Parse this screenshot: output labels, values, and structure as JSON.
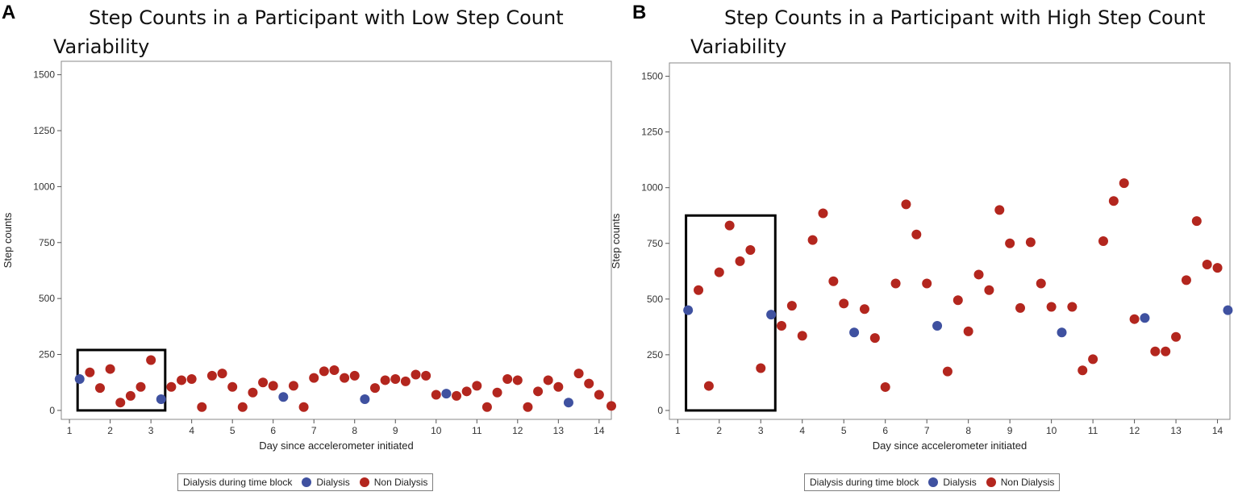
{
  "chart_data": [
    {
      "panel_label": "A",
      "type": "scatter",
      "title_line1": "Step Counts in a Participant with Low Step Count",
      "title_line2": "Variability",
      "xlabel": "Day since accelerometer initiated",
      "ylabel": "Step counts",
      "xlim": [
        0.8,
        14.3
      ],
      "ylim": [
        -40,
        1560
      ],
      "xticks": [
        "1",
        "2",
        "3",
        "4",
        "5",
        "6",
        "7",
        "8",
        "9",
        "10",
        "11",
        "12",
        "13",
        "14"
      ],
      "yticks": [
        "0",
        "250",
        "500",
        "750",
        "1000",
        "1250",
        "1500"
      ],
      "legend_title": "Dialysis during time block",
      "series": [
        {
          "name": "Dialysis",
          "color": "#3f51a0",
          "points": [
            [
              1.25,
              140
            ],
            [
              3.25,
              50
            ],
            [
              6.25,
              60
            ],
            [
              8.25,
              50
            ],
            [
              10.25,
              75
            ],
            [
              13.25,
              35
            ]
          ]
        },
        {
          "name": "Non Dialysis",
          "color": "#b3261e",
          "points": [
            [
              1.5,
              170
            ],
            [
              1.75,
              100
            ],
            [
              2.0,
              185
            ],
            [
              2.25,
              35
            ],
            [
              2.5,
              65
            ],
            [
              2.75,
              105
            ],
            [
              3.0,
              225
            ],
            [
              3.5,
              105
            ],
            [
              3.75,
              135
            ],
            [
              4.0,
              140
            ],
            [
              4.25,
              15
            ],
            [
              4.5,
              155
            ],
            [
              4.75,
              165
            ],
            [
              5.0,
              105
            ],
            [
              5.25,
              15
            ],
            [
              5.5,
              80
            ],
            [
              5.75,
              125
            ],
            [
              6.0,
              110
            ],
            [
              6.5,
              110
            ],
            [
              6.75,
              15
            ],
            [
              7.0,
              145
            ],
            [
              7.25,
              175
            ],
            [
              7.5,
              180
            ],
            [
              7.75,
              145
            ],
            [
              8.0,
              155
            ],
            [
              8.5,
              100
            ],
            [
              8.75,
              135
            ],
            [
              9.0,
              140
            ],
            [
              9.25,
              130
            ],
            [
              9.5,
              160
            ],
            [
              9.75,
              155
            ],
            [
              10.0,
              70
            ],
            [
              10.5,
              65
            ],
            [
              10.75,
              85
            ],
            [
              11.0,
              110
            ],
            [
              11.25,
              15
            ],
            [
              11.5,
              80
            ],
            [
              11.75,
              140
            ],
            [
              12.0,
              135
            ],
            [
              12.25,
              15
            ],
            [
              12.5,
              85
            ],
            [
              12.75,
              135
            ],
            [
              13.0,
              105
            ],
            [
              13.5,
              165
            ],
            [
              13.75,
              120
            ],
            [
              14.0,
              70
            ],
            [
              14.3,
              20
            ]
          ]
        }
      ],
      "highlight_box": {
        "x_range": [
          1.2,
          3.35
        ],
        "y_range": [
          0,
          270
        ]
      }
    },
    {
      "panel_label": "B",
      "type": "scatter",
      "title_line1": "Step Counts in a Participant with High Step Count",
      "title_line2": "Variability",
      "xlabel": "Day since accelerometer initiated",
      "ylabel": "Step counts",
      "xlim": [
        0.8,
        14.3
      ],
      "ylim": [
        -40,
        1560
      ],
      "xticks": [
        "1",
        "2",
        "3",
        "4",
        "5",
        "6",
        "7",
        "8",
        "9",
        "10",
        "11",
        "12",
        "13",
        "14"
      ],
      "yticks": [
        "0",
        "250",
        "500",
        "750",
        "1000",
        "1250",
        "1500"
      ],
      "legend_title": "Dialysis during time block",
      "series": [
        {
          "name": "Dialysis",
          "color": "#3f51a0",
          "points": [
            [
              1.25,
              450
            ],
            [
              3.25,
              430
            ],
            [
              5.25,
              350
            ],
            [
              7.25,
              380
            ],
            [
              10.25,
              350
            ],
            [
              12.25,
              415
            ],
            [
              14.25,
              450
            ]
          ]
        },
        {
          "name": "Non Dialysis",
          "color": "#b3261e",
          "points": [
            [
              1.5,
              540
            ],
            [
              1.75,
              110
            ],
            [
              2.0,
              620
            ],
            [
              2.25,
              830
            ],
            [
              2.5,
              670
            ],
            [
              2.75,
              720
            ],
            [
              3.0,
              190
            ],
            [
              3.5,
              380
            ],
            [
              3.75,
              470
            ],
            [
              4.0,
              335
            ],
            [
              4.25,
              765
            ],
            [
              4.5,
              885
            ],
            [
              4.75,
              580
            ],
            [
              5.0,
              480
            ],
            [
              5.5,
              455
            ],
            [
              5.75,
              325
            ],
            [
              6.0,
              105
            ],
            [
              6.25,
              570
            ],
            [
              6.5,
              925
            ],
            [
              6.75,
              790
            ],
            [
              7.0,
              570
            ],
            [
              7.5,
              175
            ],
            [
              7.75,
              495
            ],
            [
              8.0,
              355
            ],
            [
              8.25,
              610
            ],
            [
              8.5,
              540
            ],
            [
              8.75,
              900
            ],
            [
              9.0,
              750
            ],
            [
              9.25,
              460
            ],
            [
              9.5,
              755
            ],
            [
              9.75,
              570
            ],
            [
              10.0,
              465
            ],
            [
              10.5,
              465
            ],
            [
              10.75,
              180
            ],
            [
              11.0,
              230
            ],
            [
              11.25,
              760
            ],
            [
              11.5,
              940
            ],
            [
              11.75,
              1020
            ],
            [
              12.0,
              410
            ],
            [
              12.5,
              265
            ],
            [
              12.75,
              265
            ],
            [
              13.0,
              330
            ],
            [
              13.25,
              585
            ],
            [
              13.5,
              850
            ],
            [
              13.75,
              655
            ],
            [
              14.0,
              640
            ]
          ]
        }
      ],
      "highlight_box": {
        "x_range": [
          1.2,
          3.35
        ],
        "y_range": [
          0,
          875
        ]
      }
    }
  ]
}
